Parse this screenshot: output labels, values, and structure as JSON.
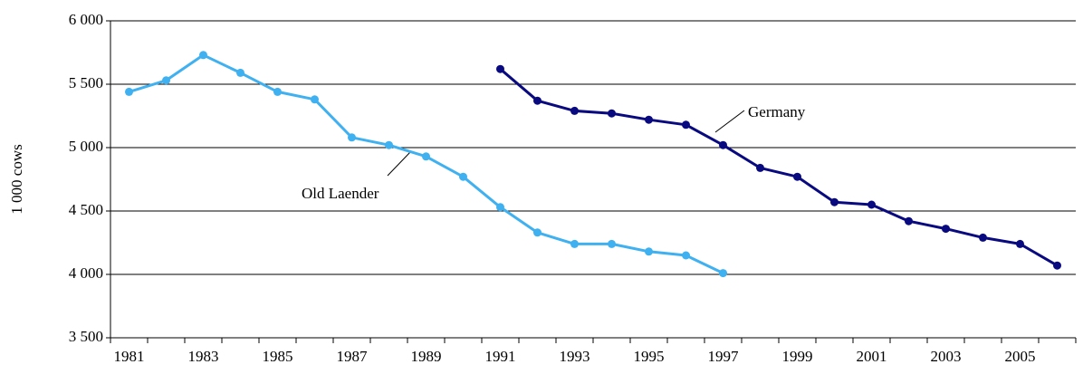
{
  "chart_data": {
    "type": "line",
    "y_label": "1 000 cows",
    "categories": [
      "1981",
      null,
      "1983",
      null,
      "1985",
      null,
      "1987",
      null,
      "1989",
      null,
      "1991",
      null,
      "1993",
      null,
      "1995",
      null,
      "1997",
      null,
      "1999",
      null,
      "2001",
      null,
      "2003",
      null,
      "2005",
      null
    ],
    "series": [
      {
        "name": "Old Laender",
        "color": "#3fb0f0",
        "values": [
          5440,
          5530,
          5730,
          5590,
          5440,
          5380,
          5080,
          5020,
          4930,
          4770,
          4530,
          4330,
          4240,
          4240,
          4180,
          4150,
          4010,
          null,
          null,
          null,
          null,
          null,
          null,
          null,
          null,
          null
        ]
      },
      {
        "name": "Germany",
        "color": "#0a0a80",
        "values": [
          null,
          null,
          null,
          null,
          null,
          null,
          null,
          null,
          null,
          null,
          5620,
          5370,
          5290,
          5270,
          5220,
          5180,
          5020,
          4840,
          4770,
          4570,
          4550,
          4420,
          4360,
          4290,
          4240,
          4070
        ]
      }
    ],
    "ylim": [
      3500,
      6000
    ],
    "yticks": [
      {
        "value": 3500,
        "label": "3 500"
      },
      {
        "value": 4000,
        "label": "4 000"
      },
      {
        "value": 4500,
        "label": "4 500"
      },
      {
        "value": 5000,
        "label": "5 000"
      },
      {
        "value": 5500,
        "label": "5 500"
      },
      {
        "value": 6000,
        "label": "6 000"
      }
    ],
    "grid": true
  }
}
